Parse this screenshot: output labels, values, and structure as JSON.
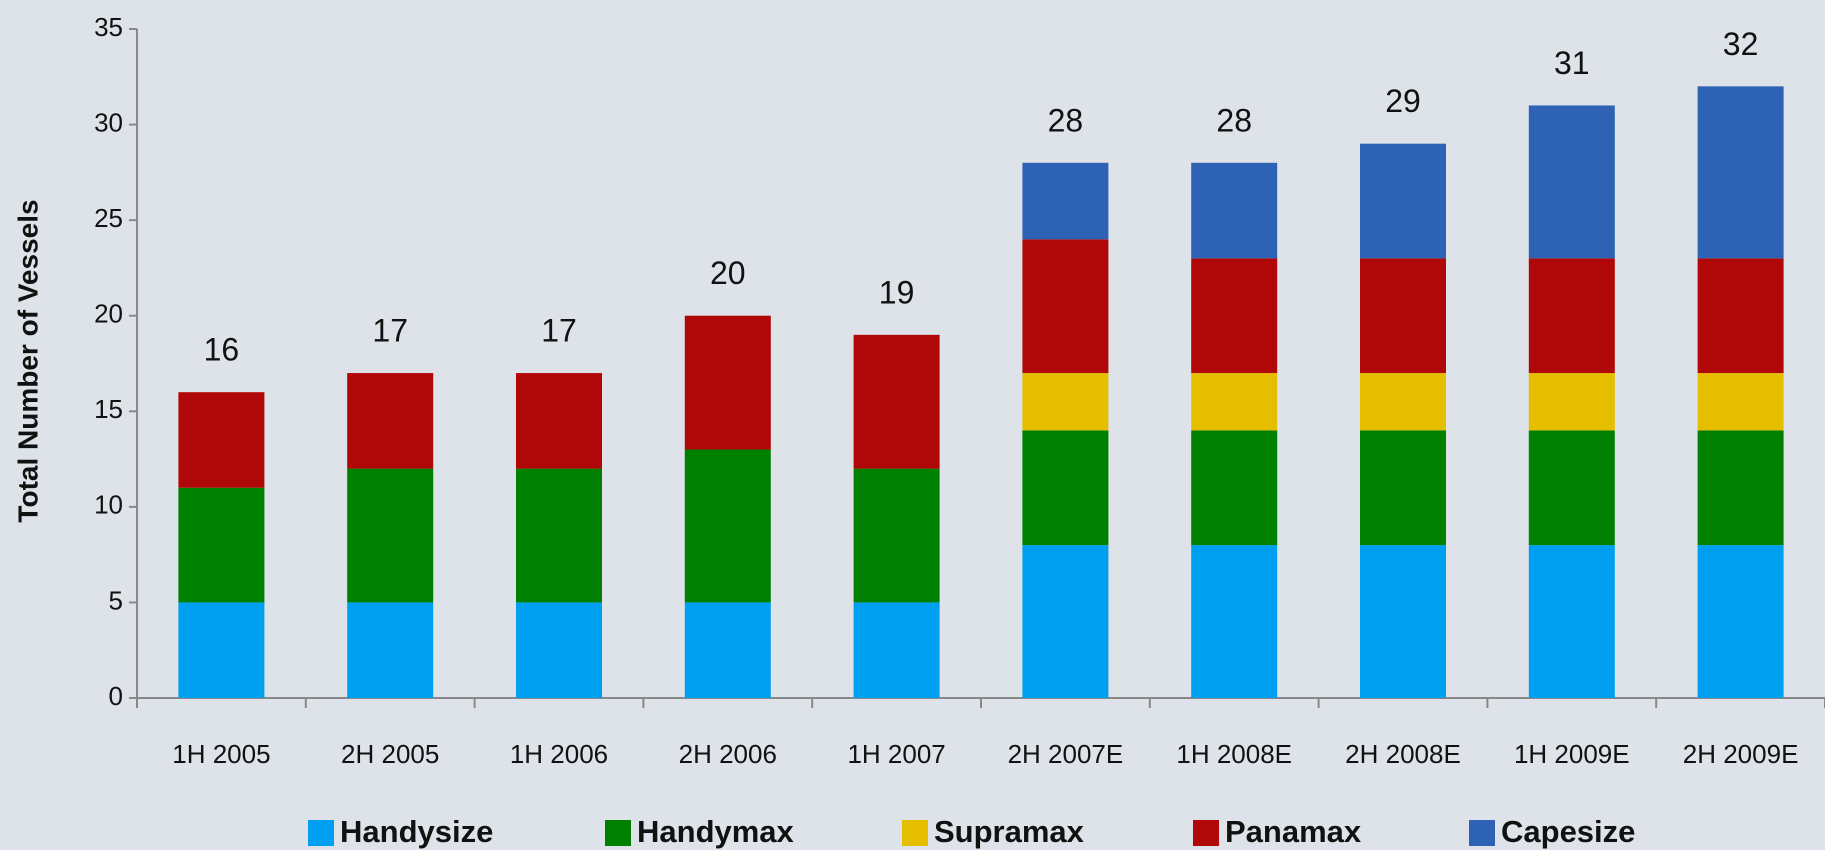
{
  "chart_data": {
    "type": "stacked_bar",
    "y_label": "Total Number of Vessels",
    "categories": [
      "1H 2005",
      "2H 2005",
      "1H 2006",
      "2H 2006",
      "1H 2007",
      "2H 2007E",
      "1H 2008E",
      "2H 2008E",
      "1H 2009E",
      "2H 2009E"
    ],
    "series": [
      {
        "name": "Handysize",
        "color": "#00a0f0",
        "values": [
          5,
          5,
          5,
          5,
          5,
          8,
          8,
          8,
          8,
          8
        ]
      },
      {
        "name": "Handymax",
        "color": "#008000",
        "values": [
          6,
          7,
          7,
          8,
          7,
          6,
          6,
          6,
          6,
          6
        ]
      },
      {
        "name": "Supramax",
        "color": "#e6be00",
        "values": [
          0,
          0,
          0,
          0,
          0,
          3,
          3,
          3,
          3,
          3
        ]
      },
      {
        "name": "Panamax",
        "color": "#b00808",
        "values": [
          5,
          5,
          5,
          7,
          7,
          7,
          6,
          6,
          6,
          6
        ]
      },
      {
        "name": "Capesize",
        "color": "#2e62b4",
        "values": [
          0,
          0,
          0,
          0,
          0,
          4,
          5,
          6,
          8,
          9
        ]
      }
    ],
    "total_labels": [
      16,
      17,
      17,
      20,
      19,
      28,
      28,
      29,
      31,
      32
    ],
    "ylim": [
      0,
      35
    ],
    "yticks": [
      0,
      5,
      10,
      15,
      20,
      25,
      30,
      35
    ],
    "grid": false
  }
}
